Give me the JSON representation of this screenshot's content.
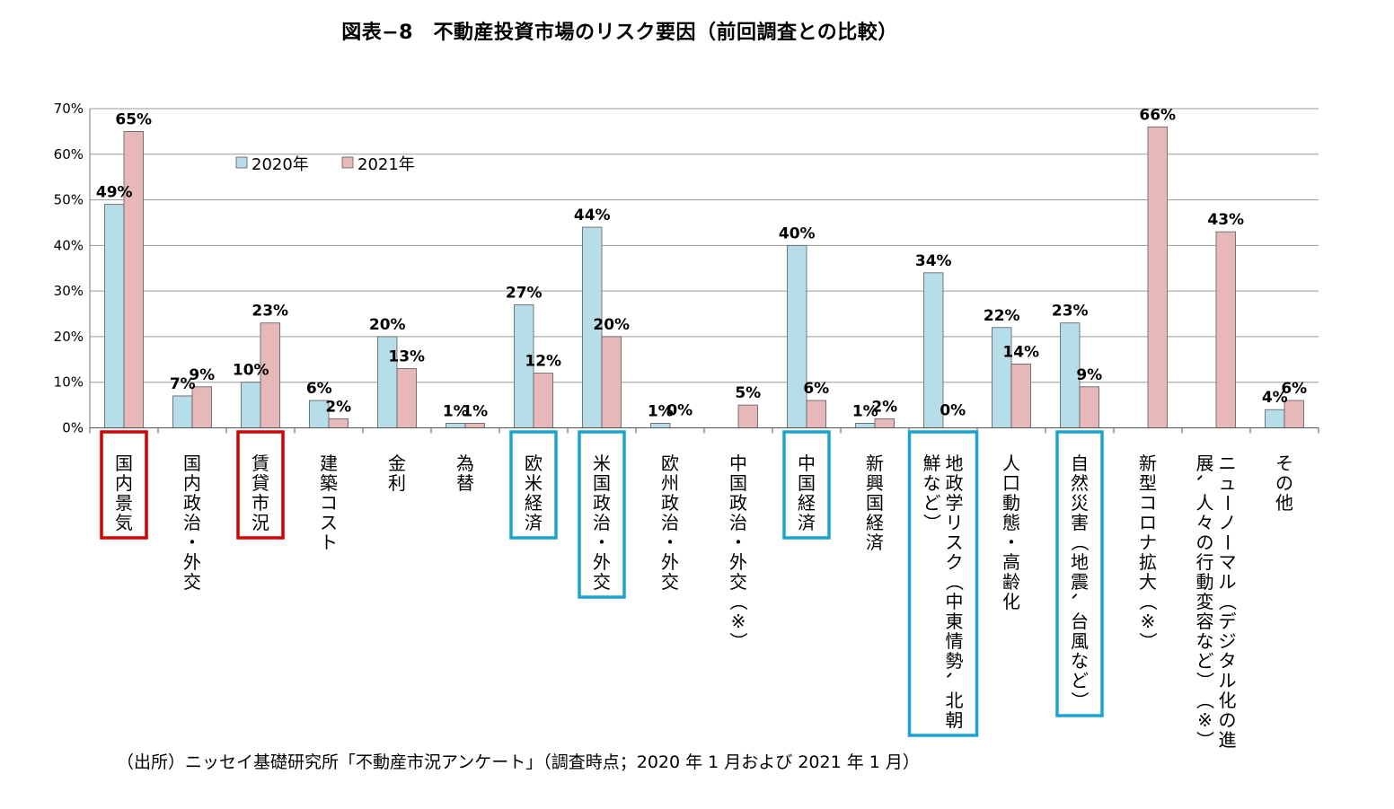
{
  "title": "図表−8　不動産投資市場のリスク要因（前回調査との比較）",
  "source": "（出所）ニッセイ基礎研究所「不動産市況アンケート」（調査時点；2020 年 1 月および 2021 年 1 月）",
  "colors": {
    "series_2020": "#b7dde8",
    "series_2021": "#e6b9b8",
    "bar_border": "#5a5a5a",
    "grid": "#999999",
    "box_red": "#d40000",
    "box_blue": "#1aa3d4"
  },
  "chart_data": {
    "type": "bar",
    "title": "図表−8　不動産投資市場のリスク要因（前回調査との比較）",
    "xlabel": "",
    "ylabel": "",
    "ylim": [
      0,
      70
    ],
    "yticks": [
      "0%",
      "10%",
      "20%",
      "30%",
      "40%",
      "50%",
      "60%",
      "70%"
    ],
    "grid": true,
    "legend_position": "top-left",
    "categories": [
      [
        "国内景気"
      ],
      [
        "国内政治・外交"
      ],
      [
        "賃貸市況"
      ],
      [
        "建築コスト"
      ],
      [
        "金利"
      ],
      [
        "為替"
      ],
      [
        "欧米経済"
      ],
      [
        "米国政治・外交"
      ],
      [
        "欧州政治・外交"
      ],
      [
        "中国政治・外交（※）"
      ],
      [
        "中国経済"
      ],
      [
        "新興国経済"
      ],
      [
        "地政学リスク（中東情勢、北朝",
        "鮮など）"
      ],
      [
        "人口動態・高齢化"
      ],
      [
        "自然災害（地震、台風など）"
      ],
      [
        "新型コロナ拡大（※）"
      ],
      [
        "ニューノーマル（デジタル化の進",
        "展、人々の行動変容など）（※）"
      ],
      [
        "その他"
      ]
    ],
    "series": [
      {
        "name": "2020年",
        "values": [
          49,
          7,
          10,
          6,
          20,
          1,
          27,
          44,
          1,
          null,
          40,
          1,
          34,
          22,
          23,
          null,
          null,
          4
        ],
        "labels": [
          "49%",
          "7%",
          "10%",
          "6%",
          "20%",
          "1%",
          "27%",
          "44%",
          "1%",
          "",
          "40%",
          "1%",
          "34%",
          "22%",
          "23%",
          "",
          "",
          "4%"
        ]
      },
      {
        "name": "2021年",
        "values": [
          65,
          9,
          23,
          2,
          13,
          1,
          12,
          20,
          0,
          5,
          6,
          2,
          0,
          14,
          9,
          66,
          43,
          6
        ],
        "labels": [
          "65%",
          "9%",
          "23%",
          "2%",
          "13%",
          "1%",
          "12%",
          "20%",
          "0%",
          "5%",
          "6%",
          "2%",
          "0%",
          "14%",
          "9%",
          "66%",
          "43%",
          "6%"
        ]
      }
    ],
    "highlight_boxes": {
      "red": [
        0,
        2
      ],
      "blue": [
        6,
        7,
        10,
        12,
        14
      ]
    }
  }
}
